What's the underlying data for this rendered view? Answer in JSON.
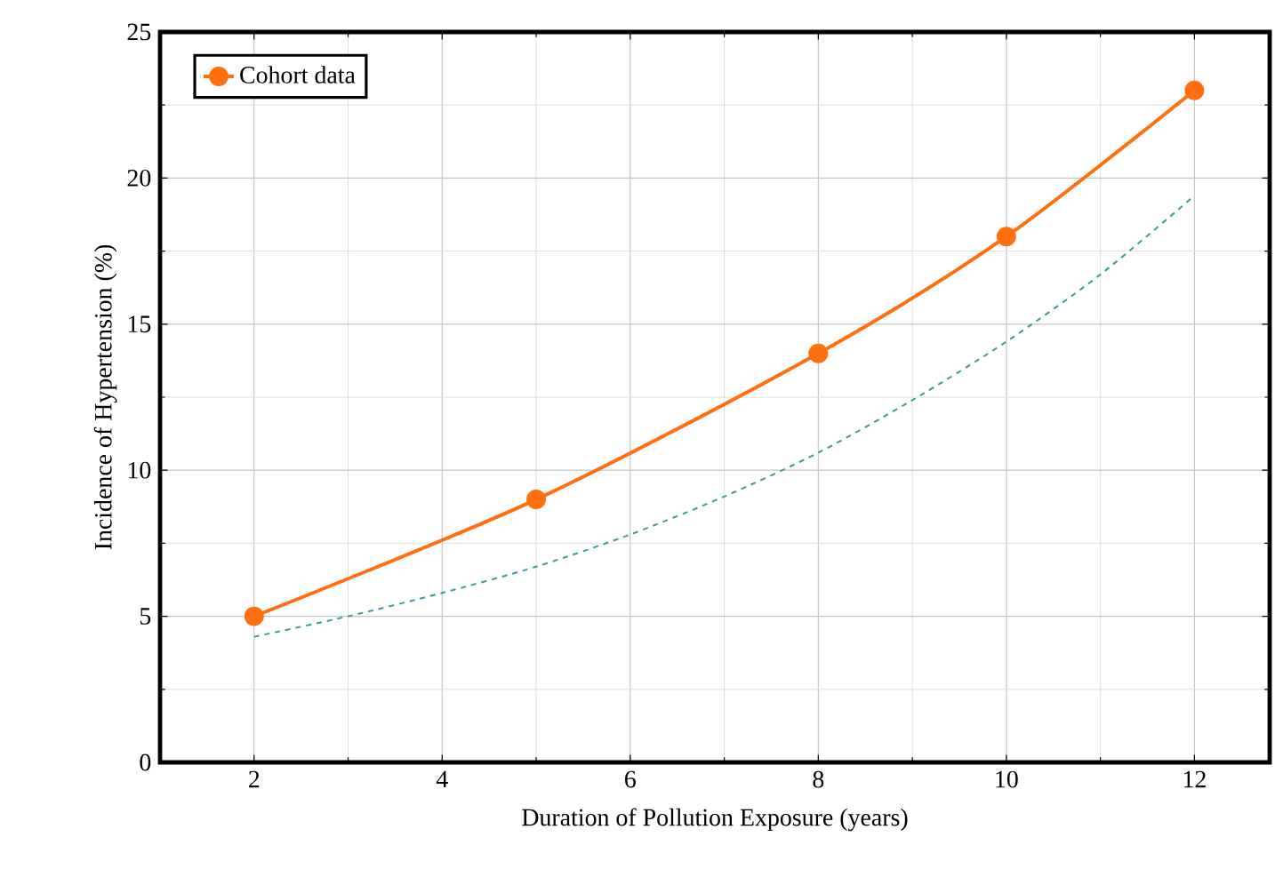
{
  "chart_data": {
    "type": "line",
    "xlabel": "Duration of Pollution Exposure (years)",
    "ylabel": "Incidence of Hypertension (%)",
    "xlim": [
      1,
      12.8
    ],
    "ylim": [
      0,
      25
    ],
    "xticks": [
      2,
      4,
      6,
      8,
      10,
      12
    ],
    "yticks": [
      0,
      5,
      10,
      15,
      20,
      25
    ],
    "grid": true,
    "legend": "top left",
    "series": [
      {
        "name": "Cohort data",
        "color": "#ff6f0f",
        "marker": "circle",
        "line_style": "solid",
        "x": [
          2,
          5,
          8,
          10,
          12
        ],
        "values": [
          5,
          9,
          14,
          18,
          23
        ]
      },
      {
        "type": "line",
        "color": "#3a9a9a",
        "marker": "none",
        "line_style": "dashed",
        "x": [
          2,
          3,
          4,
          5,
          6,
          7,
          8,
          9,
          10,
          11,
          12
        ],
        "values": [
          4.3,
          5.0,
          5.8,
          6.7,
          7.8,
          9.1,
          10.6,
          12.4,
          14.4,
          16.7,
          19.4
        ]
      }
    ]
  }
}
